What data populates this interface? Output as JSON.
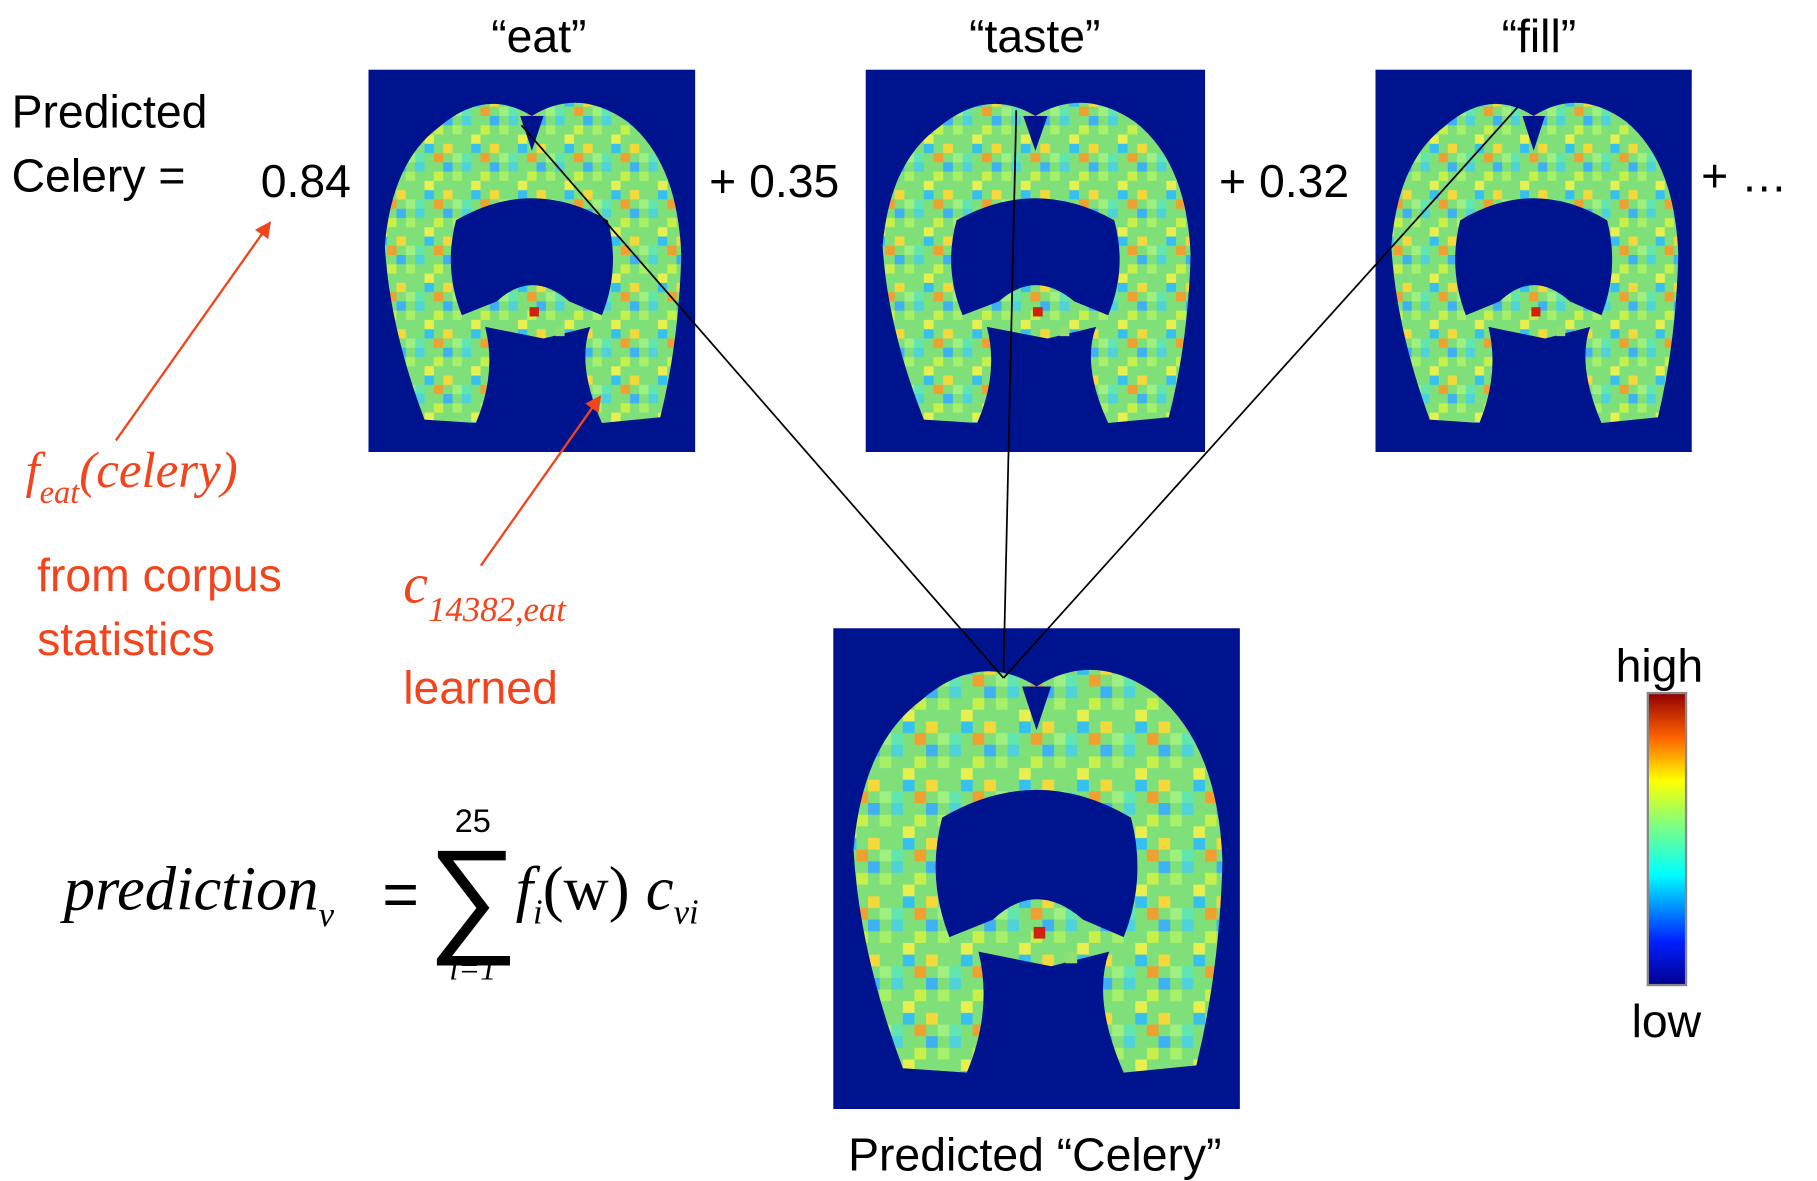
{
  "header": {
    "predicted": "Predicted",
    "celery_eq": "Celery ="
  },
  "terms": [
    {
      "word": "“eat”",
      "weight": "0.84"
    },
    {
      "word": "“taste”",
      "weight": "+ 0.35"
    },
    {
      "word": "“fill”",
      "weight": "+ 0.32"
    }
  ],
  "ellipsis": "+ …",
  "feature": {
    "f": "f",
    "sub": "eat",
    "arg": "(celery)",
    "note1": "from corpus",
    "note2": "statistics"
  },
  "coef": {
    "c": "c",
    "sub": "14382,eat",
    "note": "learned"
  },
  "formula": {
    "lhs": "prediction",
    "lhs_sub": "v",
    "eq": "=",
    "upper": "25",
    "lower": "i=1",
    "f": "f",
    "f_sub": "i",
    "arg": "(w)",
    "c": "c",
    "c_sub": "vi"
  },
  "result": "Predicted “Celery”",
  "colorbar": {
    "high": "high",
    "low": "low"
  }
}
